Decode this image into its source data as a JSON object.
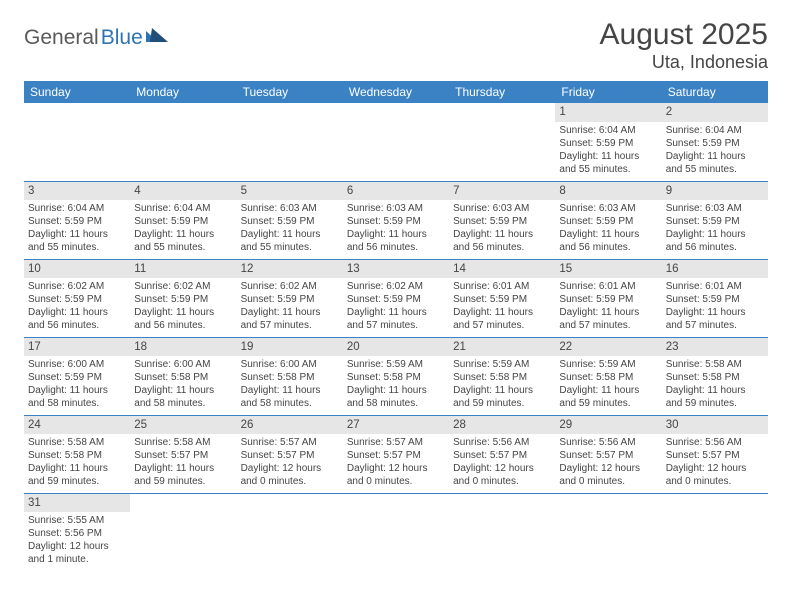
{
  "logo": {
    "part1": "General",
    "part2": "Blue"
  },
  "title": "August 2025",
  "location": "Uta, Indonesia",
  "colors": {
    "header_bg": "#3a82c4",
    "header_fg": "#ffffff",
    "daynum_bg": "#e6e6e6",
    "row_border": "#3a82c4",
    "text": "#454545",
    "logo_gray": "#5a5a5a",
    "logo_blue": "#2e74b5"
  },
  "daysOfWeek": [
    "Sunday",
    "Monday",
    "Tuesday",
    "Wednesday",
    "Thursday",
    "Friday",
    "Saturday"
  ],
  "weeks": [
    [
      null,
      null,
      null,
      null,
      null,
      {
        "n": "1",
        "sr": "Sunrise: 6:04 AM",
        "ss": "Sunset: 5:59 PM",
        "dl1": "Daylight: 11 hours",
        "dl2": "and 55 minutes."
      },
      {
        "n": "2",
        "sr": "Sunrise: 6:04 AM",
        "ss": "Sunset: 5:59 PM",
        "dl1": "Daylight: 11 hours",
        "dl2": "and 55 minutes."
      }
    ],
    [
      {
        "n": "3",
        "sr": "Sunrise: 6:04 AM",
        "ss": "Sunset: 5:59 PM",
        "dl1": "Daylight: 11 hours",
        "dl2": "and 55 minutes."
      },
      {
        "n": "4",
        "sr": "Sunrise: 6:04 AM",
        "ss": "Sunset: 5:59 PM",
        "dl1": "Daylight: 11 hours",
        "dl2": "and 55 minutes."
      },
      {
        "n": "5",
        "sr": "Sunrise: 6:03 AM",
        "ss": "Sunset: 5:59 PM",
        "dl1": "Daylight: 11 hours",
        "dl2": "and 55 minutes."
      },
      {
        "n": "6",
        "sr": "Sunrise: 6:03 AM",
        "ss": "Sunset: 5:59 PM",
        "dl1": "Daylight: 11 hours",
        "dl2": "and 56 minutes."
      },
      {
        "n": "7",
        "sr": "Sunrise: 6:03 AM",
        "ss": "Sunset: 5:59 PM",
        "dl1": "Daylight: 11 hours",
        "dl2": "and 56 minutes."
      },
      {
        "n": "8",
        "sr": "Sunrise: 6:03 AM",
        "ss": "Sunset: 5:59 PM",
        "dl1": "Daylight: 11 hours",
        "dl2": "and 56 minutes."
      },
      {
        "n": "9",
        "sr": "Sunrise: 6:03 AM",
        "ss": "Sunset: 5:59 PM",
        "dl1": "Daylight: 11 hours",
        "dl2": "and 56 minutes."
      }
    ],
    [
      {
        "n": "10",
        "sr": "Sunrise: 6:02 AM",
        "ss": "Sunset: 5:59 PM",
        "dl1": "Daylight: 11 hours",
        "dl2": "and 56 minutes."
      },
      {
        "n": "11",
        "sr": "Sunrise: 6:02 AM",
        "ss": "Sunset: 5:59 PM",
        "dl1": "Daylight: 11 hours",
        "dl2": "and 56 minutes."
      },
      {
        "n": "12",
        "sr": "Sunrise: 6:02 AM",
        "ss": "Sunset: 5:59 PM",
        "dl1": "Daylight: 11 hours",
        "dl2": "and 57 minutes."
      },
      {
        "n": "13",
        "sr": "Sunrise: 6:02 AM",
        "ss": "Sunset: 5:59 PM",
        "dl1": "Daylight: 11 hours",
        "dl2": "and 57 minutes."
      },
      {
        "n": "14",
        "sr": "Sunrise: 6:01 AM",
        "ss": "Sunset: 5:59 PM",
        "dl1": "Daylight: 11 hours",
        "dl2": "and 57 minutes."
      },
      {
        "n": "15",
        "sr": "Sunrise: 6:01 AM",
        "ss": "Sunset: 5:59 PM",
        "dl1": "Daylight: 11 hours",
        "dl2": "and 57 minutes."
      },
      {
        "n": "16",
        "sr": "Sunrise: 6:01 AM",
        "ss": "Sunset: 5:59 PM",
        "dl1": "Daylight: 11 hours",
        "dl2": "and 57 minutes."
      }
    ],
    [
      {
        "n": "17",
        "sr": "Sunrise: 6:00 AM",
        "ss": "Sunset: 5:59 PM",
        "dl1": "Daylight: 11 hours",
        "dl2": "and 58 minutes."
      },
      {
        "n": "18",
        "sr": "Sunrise: 6:00 AM",
        "ss": "Sunset: 5:58 PM",
        "dl1": "Daylight: 11 hours",
        "dl2": "and 58 minutes."
      },
      {
        "n": "19",
        "sr": "Sunrise: 6:00 AM",
        "ss": "Sunset: 5:58 PM",
        "dl1": "Daylight: 11 hours",
        "dl2": "and 58 minutes."
      },
      {
        "n": "20",
        "sr": "Sunrise: 5:59 AM",
        "ss": "Sunset: 5:58 PM",
        "dl1": "Daylight: 11 hours",
        "dl2": "and 58 minutes."
      },
      {
        "n": "21",
        "sr": "Sunrise: 5:59 AM",
        "ss": "Sunset: 5:58 PM",
        "dl1": "Daylight: 11 hours",
        "dl2": "and 59 minutes."
      },
      {
        "n": "22",
        "sr": "Sunrise: 5:59 AM",
        "ss": "Sunset: 5:58 PM",
        "dl1": "Daylight: 11 hours",
        "dl2": "and 59 minutes."
      },
      {
        "n": "23",
        "sr": "Sunrise: 5:58 AM",
        "ss": "Sunset: 5:58 PM",
        "dl1": "Daylight: 11 hours",
        "dl2": "and 59 minutes."
      }
    ],
    [
      {
        "n": "24",
        "sr": "Sunrise: 5:58 AM",
        "ss": "Sunset: 5:58 PM",
        "dl1": "Daylight: 11 hours",
        "dl2": "and 59 minutes."
      },
      {
        "n": "25",
        "sr": "Sunrise: 5:58 AM",
        "ss": "Sunset: 5:57 PM",
        "dl1": "Daylight: 11 hours",
        "dl2": "and 59 minutes."
      },
      {
        "n": "26",
        "sr": "Sunrise: 5:57 AM",
        "ss": "Sunset: 5:57 PM",
        "dl1": "Daylight: 12 hours",
        "dl2": "and 0 minutes."
      },
      {
        "n": "27",
        "sr": "Sunrise: 5:57 AM",
        "ss": "Sunset: 5:57 PM",
        "dl1": "Daylight: 12 hours",
        "dl2": "and 0 minutes."
      },
      {
        "n": "28",
        "sr": "Sunrise: 5:56 AM",
        "ss": "Sunset: 5:57 PM",
        "dl1": "Daylight: 12 hours",
        "dl2": "and 0 minutes."
      },
      {
        "n": "29",
        "sr": "Sunrise: 5:56 AM",
        "ss": "Sunset: 5:57 PM",
        "dl1": "Daylight: 12 hours",
        "dl2": "and 0 minutes."
      },
      {
        "n": "30",
        "sr": "Sunrise: 5:56 AM",
        "ss": "Sunset: 5:57 PM",
        "dl1": "Daylight: 12 hours",
        "dl2": "and 0 minutes."
      }
    ],
    [
      {
        "n": "31",
        "sr": "Sunrise: 5:55 AM",
        "ss": "Sunset: 5:56 PM",
        "dl1": "Daylight: 12 hours",
        "dl2": "and 1 minute."
      },
      null,
      null,
      null,
      null,
      null,
      null
    ]
  ]
}
